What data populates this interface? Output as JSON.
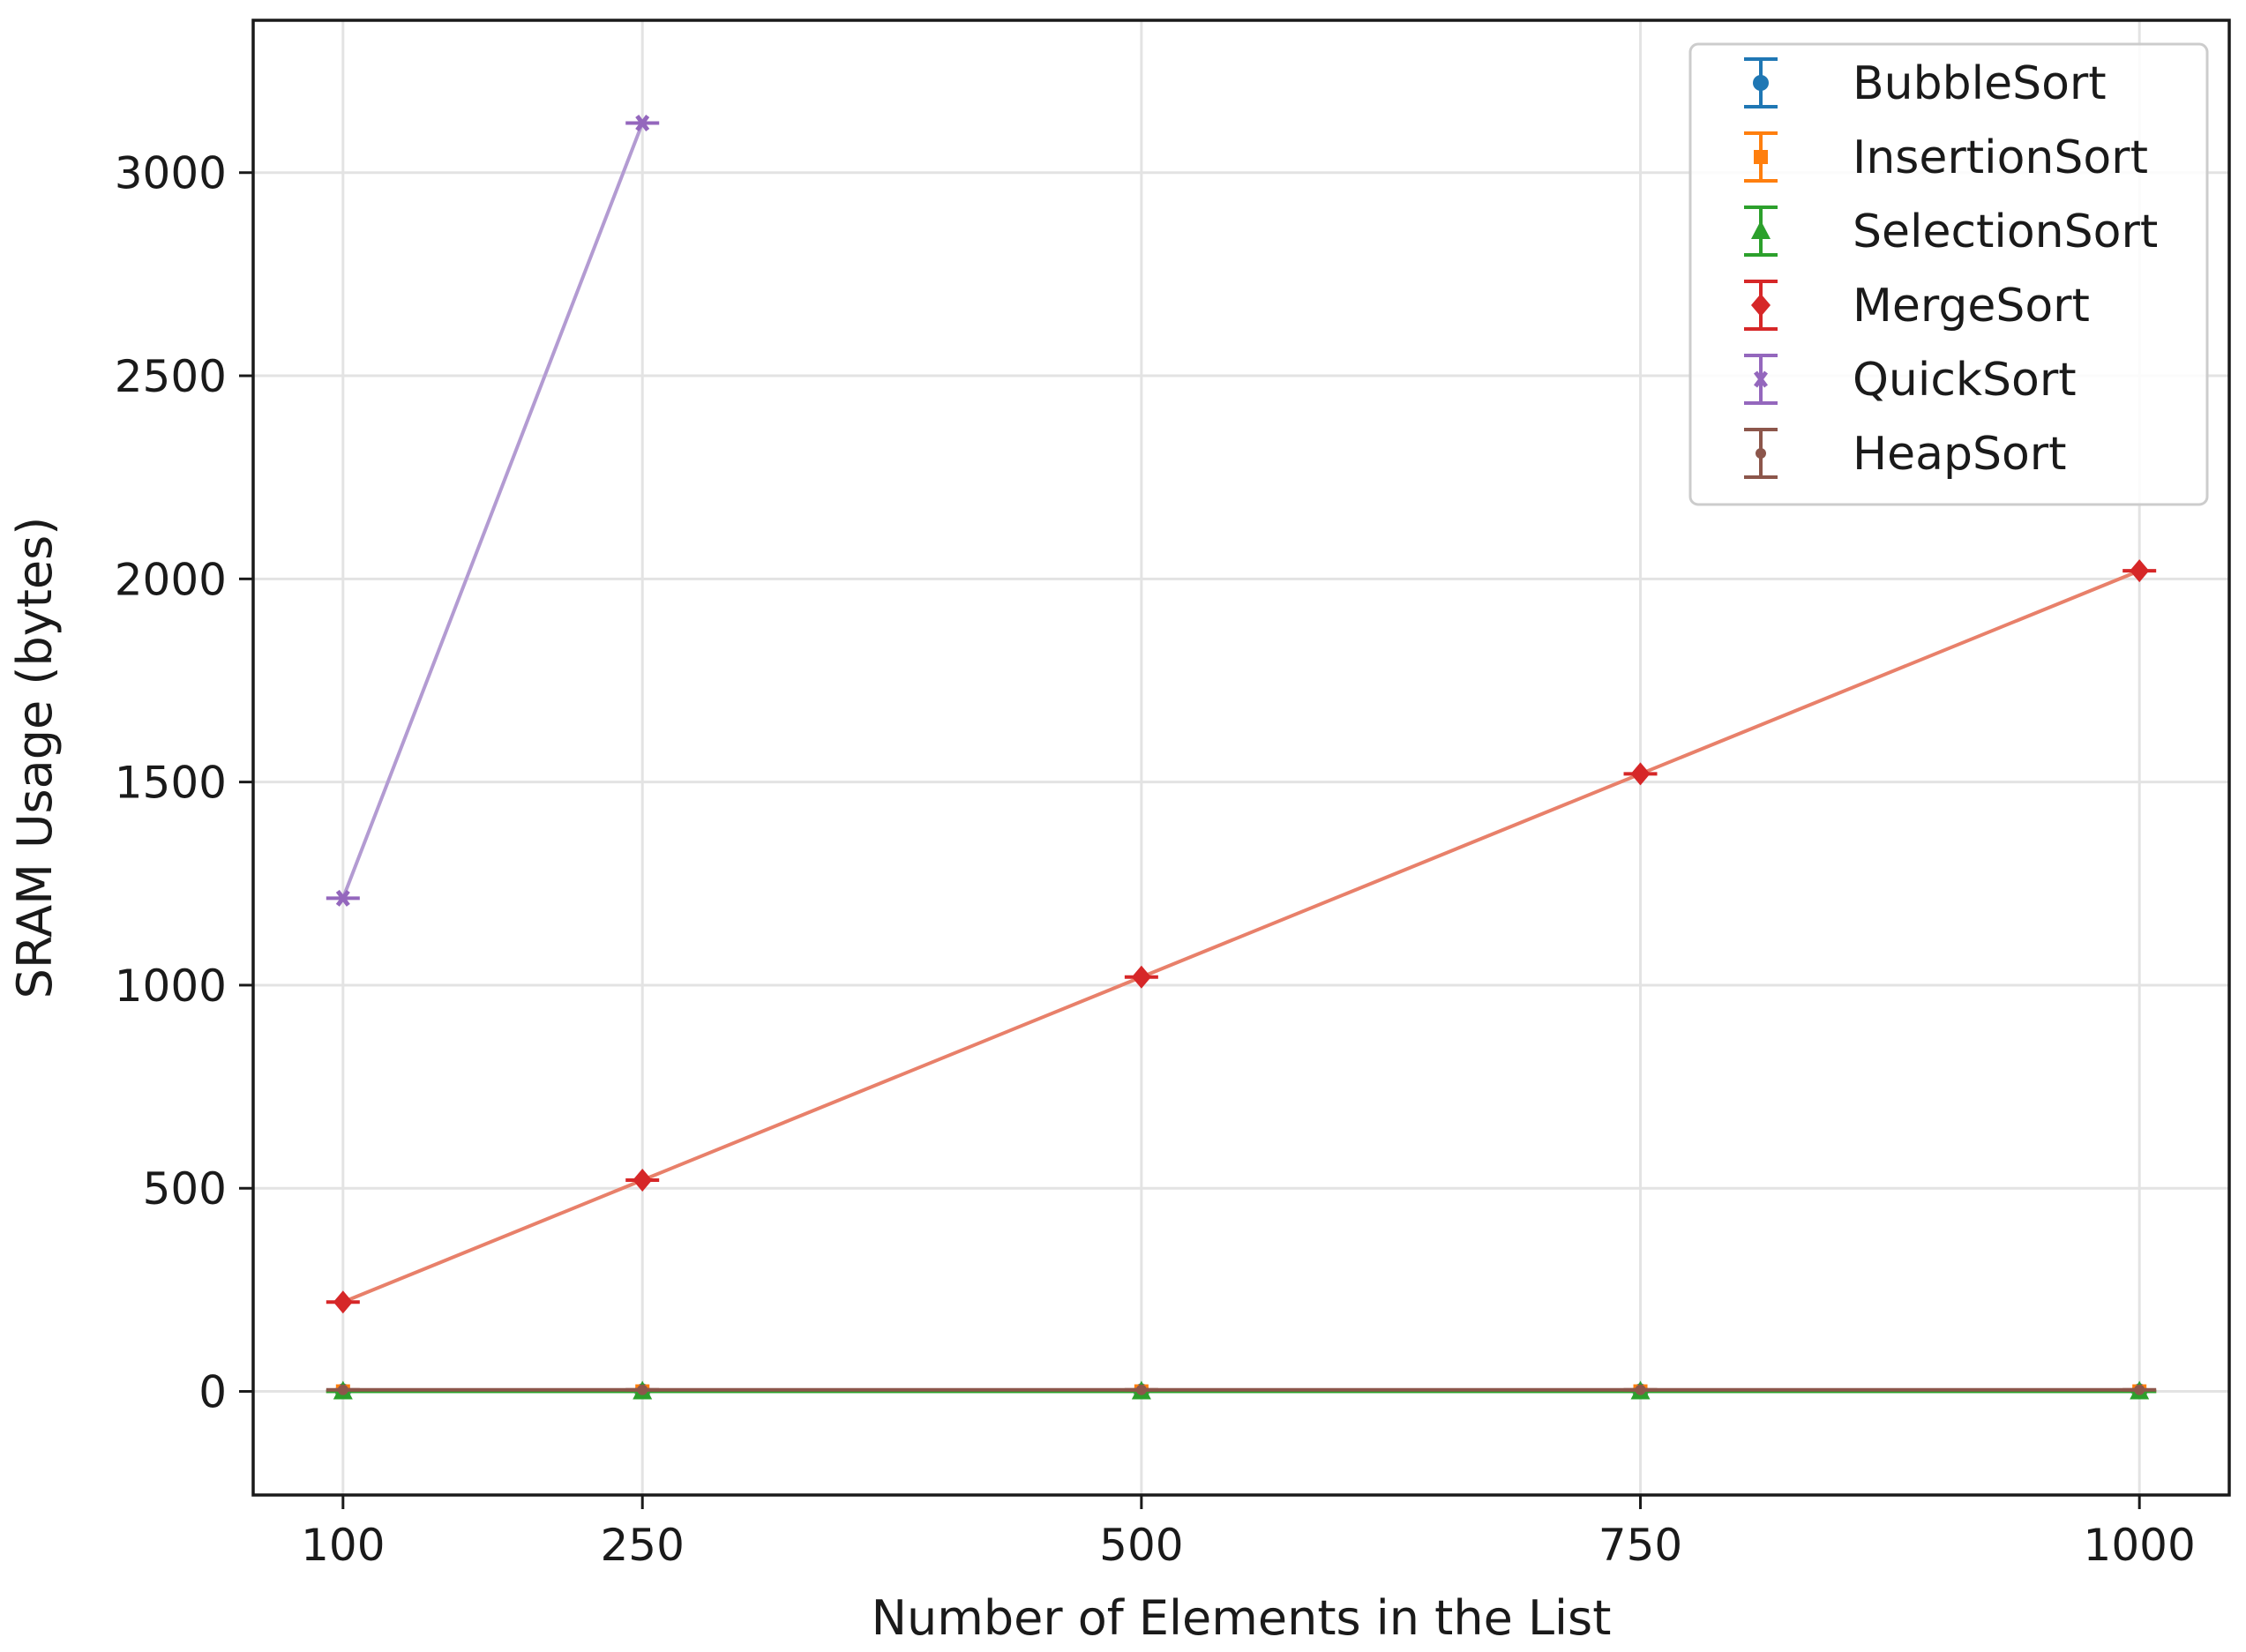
{
  "chart_data": {
    "type": "line",
    "title": "",
    "xlabel": "Number of Elements in the List",
    "ylabel": "SRAM Usage (bytes)",
    "x": [
      100,
      250,
      500,
      750,
      1000
    ],
    "x_tick_labels": [
      "100",
      "250",
      "500",
      "750",
      "1000"
    ],
    "y_ticks": [
      0,
      500,
      1000,
      1500,
      2000,
      2500,
      3000
    ],
    "y_tick_labels": [
      "0",
      "500",
      "1000",
      "1500",
      "2000",
      "2500",
      "3000"
    ],
    "xlim": [
      55,
      1045
    ],
    "ylim": [
      -255,
      3375
    ],
    "grid": true,
    "legend_position": "top-right",
    "error_bars": true,
    "series": [
      {
        "name": "BubbleSort",
        "color": "#1f77b4",
        "marker": "circle",
        "values": [
          0,
          0,
          0,
          0,
          0
        ]
      },
      {
        "name": "InsertionSort",
        "color": "#ff7f0e",
        "marker": "square",
        "values": [
          0,
          0,
          0,
          0,
          0
        ]
      },
      {
        "name": "SelectionSort",
        "color": "#2ca02c",
        "marker": "triangle",
        "values": [
          0,
          0,
          0,
          0,
          0
        ]
      },
      {
        "name": "MergeSort",
        "color": "#d62728",
        "line_color": "#e8806a",
        "marker": "diamond",
        "values": [
          220,
          520,
          1020,
          1520,
          2020
        ]
      },
      {
        "name": "QuickSort",
        "color": "#9467bd",
        "line_color": "#b39bd2",
        "marker": "x",
        "values": [
          1214,
          3122,
          null,
          null,
          null
        ]
      },
      {
        "name": "HeapSort",
        "color": "#8c564b",
        "marker": "dot",
        "values": [
          4,
          4,
          4,
          4,
          4
        ]
      }
    ]
  }
}
